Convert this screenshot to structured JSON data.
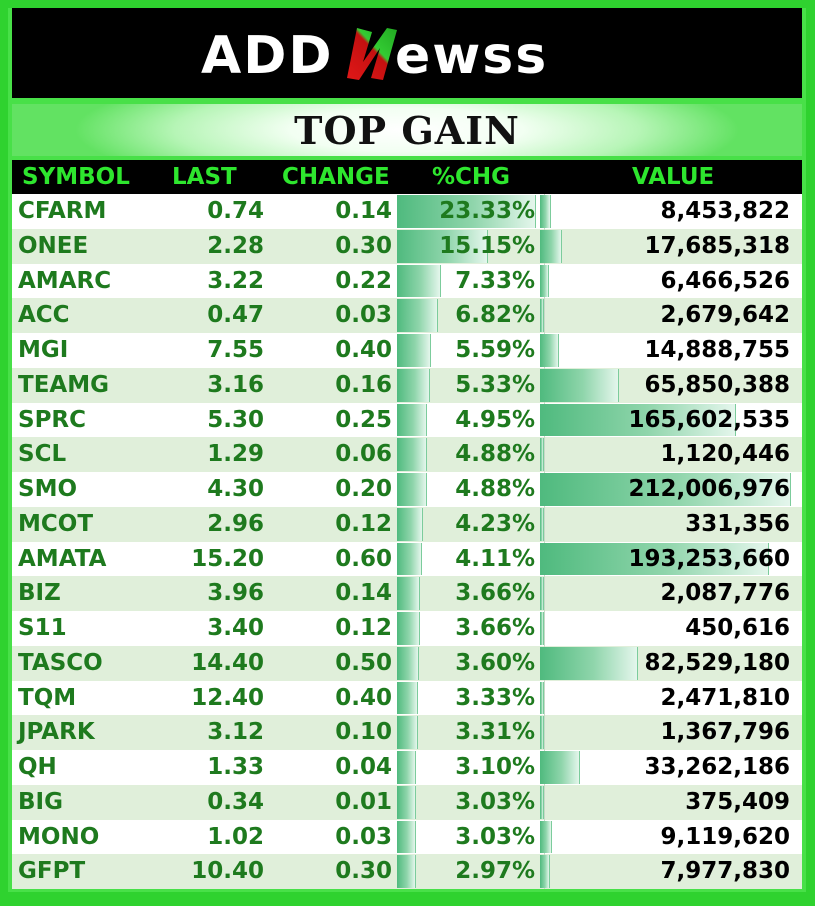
{
  "brand": {
    "name": "ADDNewsS",
    "part1": "ADD",
    "part2": "ewss"
  },
  "title": "TOP GAIN",
  "columns": {
    "symbol": "SYMBOL",
    "last": "LAST",
    "change": "CHANGE",
    "pct": "%CHG",
    "value": "VALUE"
  },
  "colors": {
    "accent_green": "#2fd22f",
    "text_green": "#1e7a1e",
    "header_green": "#2ee62e",
    "bar_green": "#4fba7e"
  },
  "rows": [
    {
      "symbol": "CFARM",
      "last": "0.74",
      "change": "0.14",
      "pct": "23.33%",
      "value": "8,453,822",
      "pct_num": 23.33,
      "value_num": 8453822
    },
    {
      "symbol": "ONEE",
      "last": "2.28",
      "change": "0.30",
      "pct": "15.15%",
      "value": "17,685,318",
      "pct_num": 15.15,
      "value_num": 17685318
    },
    {
      "symbol": "AMARC",
      "last": "3.22",
      "change": "0.22",
      "pct": "7.33%",
      "value": "6,466,526",
      "pct_num": 7.33,
      "value_num": 6466526
    },
    {
      "symbol": "ACC",
      "last": "0.47",
      "change": "0.03",
      "pct": "6.82%",
      "value": "2,679,642",
      "pct_num": 6.82,
      "value_num": 2679642
    },
    {
      "symbol": "MGI",
      "last": "7.55",
      "change": "0.40",
      "pct": "5.59%",
      "value": "14,888,755",
      "pct_num": 5.59,
      "value_num": 14888755
    },
    {
      "symbol": "TEAMG",
      "last": "3.16",
      "change": "0.16",
      "pct": "5.33%",
      "value": "65,850,388",
      "pct_num": 5.33,
      "value_num": 65850388
    },
    {
      "symbol": "SPRC",
      "last": "5.30",
      "change": "0.25",
      "pct": "4.95%",
      "value": "165,602,535",
      "pct_num": 4.95,
      "value_num": 165602535
    },
    {
      "symbol": "SCL",
      "last": "1.29",
      "change": "0.06",
      "pct": "4.88%",
      "value": "1,120,446",
      "pct_num": 4.88,
      "value_num": 1120446
    },
    {
      "symbol": "SMO",
      "last": "4.30",
      "change": "0.20",
      "pct": "4.88%",
      "value": "212,006,976",
      "pct_num": 4.88,
      "value_num": 212006976
    },
    {
      "symbol": "MCOT",
      "last": "2.96",
      "change": "0.12",
      "pct": "4.23%",
      "value": "331,356",
      "pct_num": 4.23,
      "value_num": 331356
    },
    {
      "symbol": "AMATA",
      "last": "15.20",
      "change": "0.60",
      "pct": "4.11%",
      "value": "193,253,660",
      "pct_num": 4.11,
      "value_num": 193253660
    },
    {
      "symbol": "BIZ",
      "last": "3.96",
      "change": "0.14",
      "pct": "3.66%",
      "value": "2,087,776",
      "pct_num": 3.66,
      "value_num": 2087776
    },
    {
      "symbol": "S11",
      "last": "3.40",
      "change": "0.12",
      "pct": "3.66%",
      "value": "450,616",
      "pct_num": 3.66,
      "value_num": 450616
    },
    {
      "symbol": "TASCO",
      "last": "14.40",
      "change": "0.50",
      "pct": "3.60%",
      "value": "82,529,180",
      "pct_num": 3.6,
      "value_num": 82529180
    },
    {
      "symbol": "TQM",
      "last": "12.40",
      "change": "0.40",
      "pct": "3.33%",
      "value": "2,471,810",
      "pct_num": 3.33,
      "value_num": 2471810
    },
    {
      "symbol": "JPARK",
      "last": "3.12",
      "change": "0.10",
      "pct": "3.31%",
      "value": "1,367,796",
      "pct_num": 3.31,
      "value_num": 1367796
    },
    {
      "symbol": "QH",
      "last": "1.33",
      "change": "0.04",
      "pct": "3.10%",
      "value": "33,262,186",
      "pct_num": 3.1,
      "value_num": 33262186
    },
    {
      "symbol": "BIG",
      "last": "0.34",
      "change": "0.01",
      "pct": "3.03%",
      "value": "375,409",
      "pct_num": 3.03,
      "value_num": 375409
    },
    {
      "symbol": "MONO",
      "last": "1.02",
      "change": "0.03",
      "pct": "3.03%",
      "value": "9,119,620",
      "pct_num": 3.03,
      "value_num": 9119620
    },
    {
      "symbol": "GFPT",
      "last": "10.40",
      "change": "0.30",
      "pct": "2.97%",
      "value": "7,977,830",
      "pct_num": 2.97,
      "value_num": 7977830
    }
  ]
}
